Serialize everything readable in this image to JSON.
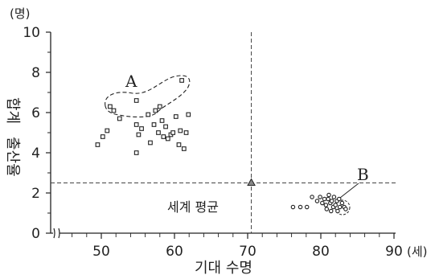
{
  "chart_data": {
    "type": "scatter",
    "xlabel": "기대 수명",
    "ylabel": [
      "합계",
      "출산율"
    ],
    "x_unit": "(세)",
    "y_unit": "(명)",
    "xlim": [
      42,
      90
    ],
    "ylim": [
      0,
      10
    ],
    "x_ticks": [
      50,
      60,
      70,
      80,
      90
    ],
    "y_ticks": [
      0,
      2,
      4,
      6,
      8,
      10
    ],
    "x_tick_labels": [
      "50",
      "60",
      "70",
      "80",
      "90"
    ],
    "y_tick_labels": [
      "0",
      "2",
      "4",
      "6",
      "8",
      "10"
    ],
    "world_average": {
      "label": "세계 평균",
      "x": 70.5,
      "y": 2.5
    },
    "groups": [
      {
        "label": "A",
        "marker": "square",
        "color": "#222222"
      },
      {
        "label": "B",
        "marker": "circle",
        "color": "#222222"
      }
    ],
    "series": [
      {
        "marker": "square",
        "points": [
          [
            49.5,
            4.4
          ],
          [
            50.2,
            4.8
          ],
          [
            50.8,
            5.1
          ],
          [
            51.2,
            6.3
          ],
          [
            51.7,
            6.1
          ],
          [
            52.5,
            5.7
          ],
          [
            54.8,
            6.6
          ],
          [
            54.8,
            5.4
          ],
          [
            55.1,
            4.9
          ],
          [
            54.8,
            4.0
          ],
          [
            55.5,
            5.2
          ],
          [
            56.4,
            5.9
          ],
          [
            56.7,
            4.5
          ],
          [
            57.2,
            5.4
          ],
          [
            57.4,
            6.1
          ],
          [
            57.8,
            5.0
          ],
          [
            58.0,
            6.3
          ],
          [
            58.3,
            5.6
          ],
          [
            58.8,
            5.3
          ],
          [
            59.1,
            4.7
          ],
          [
            59.5,
            4.9
          ],
          [
            59.8,
            5.0
          ],
          [
            60.2,
            5.8
          ],
          [
            60.6,
            4.4
          ],
          [
            60.8,
            5.1
          ],
          [
            61.0,
            7.6
          ],
          [
            61.3,
            4.2
          ],
          [
            61.6,
            5.0
          ],
          [
            61.9,
            5.9
          ],
          [
            58.5,
            4.8
          ]
        ]
      },
      {
        "marker": "circle",
        "points": [
          [
            76.2,
            1.3
          ],
          [
            77.2,
            1.3
          ],
          [
            78.1,
            1.3
          ],
          [
            78.8,
            1.8
          ],
          [
            79.5,
            1.6
          ],
          [
            79.9,
            1.8
          ],
          [
            80.2,
            1.5
          ],
          [
            80.5,
            1.7
          ],
          [
            80.7,
            1.4
          ],
          [
            80.8,
            1.2
          ],
          [
            81.0,
            1.7
          ],
          [
            81.1,
            1.9
          ],
          [
            81.3,
            1.5
          ],
          [
            81.5,
            1.6
          ],
          [
            81.7,
            1.3
          ],
          [
            81.8,
            1.8
          ],
          [
            82.0,
            1.4
          ],
          [
            82.2,
            1.6
          ],
          [
            82.3,
            1.1
          ],
          [
            82.6,
            1.3
          ],
          [
            82.9,
            1.5
          ],
          [
            83.2,
            1.3
          ],
          [
            83.4,
            1.2
          ],
          [
            81.4,
            1.1
          ],
          [
            82.5,
            1.7
          ]
        ]
      }
    ]
  }
}
